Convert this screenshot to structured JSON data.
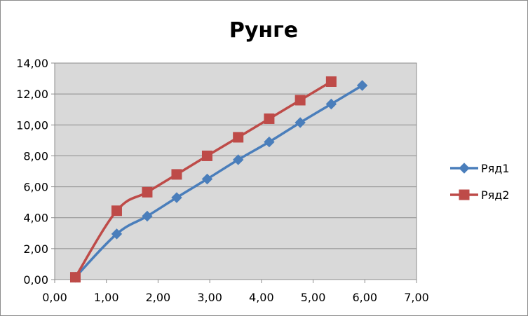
{
  "chart_data": {
    "type": "scatter",
    "title": "Рунге",
    "xlabel": "",
    "ylabel": "",
    "xlim": [
      0,
      7
    ],
    "ylim": [
      0,
      14
    ],
    "xticks": [
      "0,00",
      "1,00",
      "2,00",
      "3,00",
      "4,00",
      "5,00",
      "6,00",
      "7,00"
    ],
    "yticks": [
      "0,00",
      "2,00",
      "4,00",
      "6,00",
      "8,00",
      "10,00",
      "12,00",
      "14,00"
    ],
    "grid": true,
    "legend_position": "right",
    "series": [
      {
        "name": "Ряд1",
        "color": "#4a7ebb",
        "marker": "diamond",
        "x": [
          0.4,
          1.2,
          1.79,
          2.36,
          2.95,
          3.55,
          4.15,
          4.75,
          5.35,
          5.95
        ],
        "y": [
          0.15,
          2.95,
          4.1,
          5.3,
          6.5,
          7.75,
          8.9,
          10.15,
          11.35,
          12.55
        ]
      },
      {
        "name": "Ряд2",
        "color": "#be4b48",
        "marker": "square",
        "x": [
          0.4,
          1.2,
          1.79,
          2.36,
          2.95,
          3.55,
          4.15,
          4.75,
          5.35
        ],
        "y": [
          0.15,
          4.45,
          5.65,
          6.8,
          8.0,
          9.2,
          10.4,
          11.6,
          12.8
        ]
      }
    ]
  }
}
